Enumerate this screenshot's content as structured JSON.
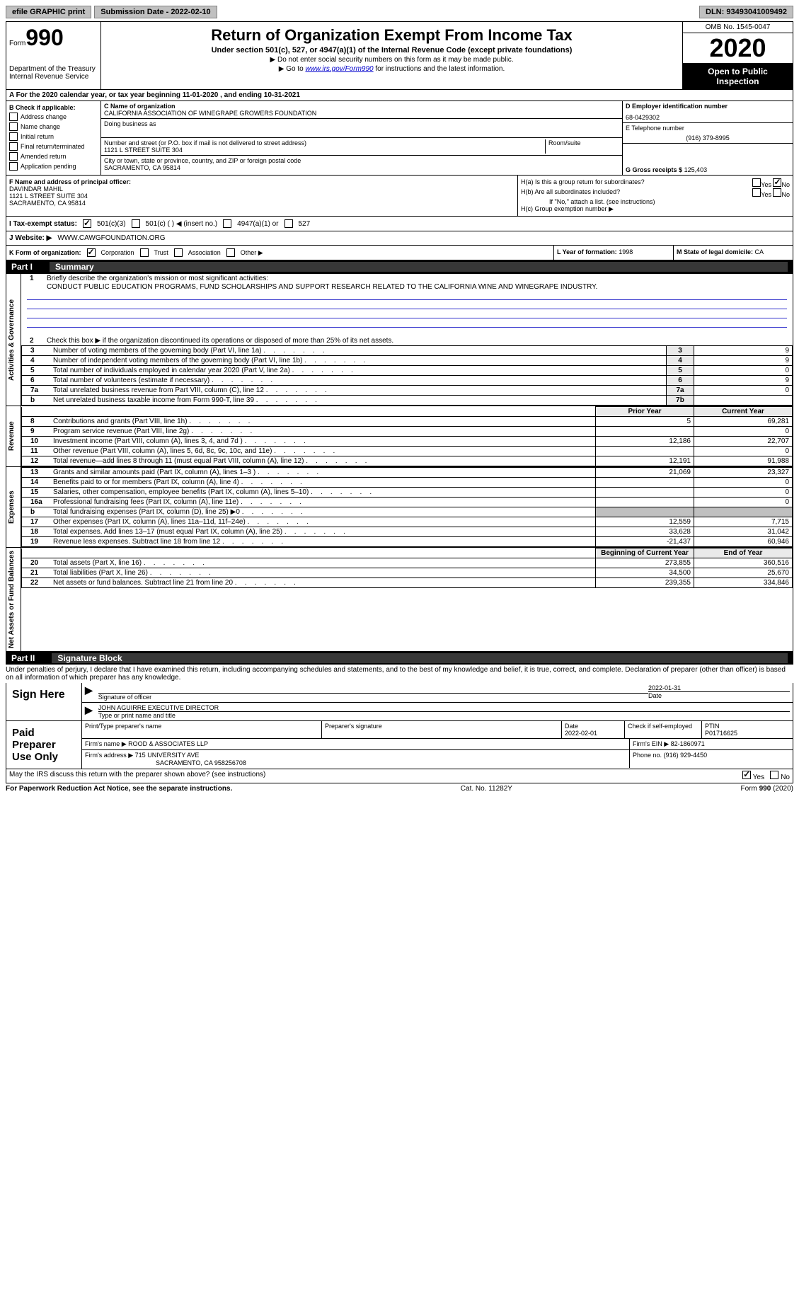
{
  "top": {
    "efile": "efile GRAPHIC print",
    "submission": "Submission Date - 2022-02-10",
    "dln": "DLN: 93493041009492"
  },
  "header": {
    "form_label": "Form",
    "form_num": "990",
    "title": "Return of Organization Exempt From Income Tax",
    "subtitle": "Under section 501(c), 527, or 4947(a)(1) of the Internal Revenue Code (except private foundations)",
    "instr1": "▶ Do not enter social security numbers on this form as it may be made public.",
    "instr2_pre": "▶ Go to ",
    "instr2_link": "www.irs.gov/Form990",
    "instr2_post": " for instructions and the latest information.",
    "dept": "Department of the Treasury",
    "irs": "Internal Revenue Service",
    "omb": "OMB No. 1545-0047",
    "year": "2020",
    "open": "Open to Public Inspection"
  },
  "period": "A For the 2020 calendar year, or tax year beginning 11-01-2020    , and ending 10-31-2021",
  "section_b": {
    "label": "B Check if applicable:",
    "items": [
      "Address change",
      "Name change",
      "Initial return",
      "Final return/terminated",
      "Amended return",
      "Application pending"
    ]
  },
  "section_c": {
    "name_label": "C Name of organization",
    "name": "CALIFORNIA ASSOCIATION OF WINEGRAPE GROWERS FOUNDATION",
    "dba_label": "Doing business as",
    "addr_label": "Number and street (or P.O. box if mail is not delivered to street address)",
    "room_label": "Room/suite",
    "addr": "1121 L STREET SUITE 304",
    "city_label": "City or town, state or province, country, and ZIP or foreign postal code",
    "city": "SACRAMENTO, CA  95814"
  },
  "section_d": {
    "ein_label": "D Employer identification number",
    "ein": "68-0429302",
    "tel_label": "E Telephone number",
    "tel": "(916) 379-8995",
    "gross_label": "G Gross receipts $",
    "gross": "125,403"
  },
  "section_f": {
    "label": "F Name and address of principal officer:",
    "name": "DAVINDAR MAHIL",
    "addr1": "1121 L STREET SUITE 304",
    "addr2": "SACRAMENTO, CA  95814"
  },
  "section_h": {
    "ha": "H(a)  Is this a group return for subordinates?",
    "hb": "H(b)  Are all subordinates included?",
    "hb_note": "If \"No,\" attach a list. (see instructions)",
    "hc": "H(c)  Group exemption number ▶",
    "yes": "Yes",
    "no": "No"
  },
  "tax_status": {
    "label": "I  Tax-exempt status:",
    "opts": [
      "501(c)(3)",
      "501(c) (  ) ◀ (insert no.)",
      "4947(a)(1) or",
      "527"
    ]
  },
  "website": {
    "label": "J  Website: ▶",
    "value": "WWW.CAWGFOUNDATION.ORG"
  },
  "form_org": {
    "label": "K Form of organization:",
    "opts": [
      "Corporation",
      "Trust",
      "Association",
      "Other ▶"
    ]
  },
  "lm": {
    "l_label": "L Year of formation:",
    "l_val": "1998",
    "m_label": "M State of legal domicile:",
    "m_val": "CA"
  },
  "part1": {
    "label": "Part I",
    "title": "Summary",
    "side1": "Activities & Governance",
    "side2": "Revenue",
    "side3": "Expenses",
    "side4": "Net Assets or Fund Balances",
    "q1": "Briefly describe the organization's mission or most significant activities:",
    "mission": "CONDUCT PUBLIC EDUCATION PROGRAMS, FUND SCHOLARSHIPS AND SUPPORT RESEARCH RELATED TO THE CALIFORNIA WINE AND WINEGRAPE INDUSTRY.",
    "q2": "Check this box ▶       if the organization discontinued its operations or disposed of more than 25% of its net assets.",
    "prior_year": "Prior Year",
    "current_year": "Current Year",
    "beg_year": "Beginning of Current Year",
    "end_year": "End of Year",
    "rows_gov": [
      {
        "n": "3",
        "t": "Number of voting members of the governing body (Part VI, line 1a)",
        "b": "3",
        "v": "9"
      },
      {
        "n": "4",
        "t": "Number of independent voting members of the governing body (Part VI, line 1b)",
        "b": "4",
        "v": "9"
      },
      {
        "n": "5",
        "t": "Total number of individuals employed in calendar year 2020 (Part V, line 2a)",
        "b": "5",
        "v": "0"
      },
      {
        "n": "6",
        "t": "Total number of volunteers (estimate if necessary)",
        "b": "6",
        "v": "9"
      },
      {
        "n": "7a",
        "t": "Total unrelated business revenue from Part VIII, column (C), line 12",
        "b": "7a",
        "v": "0"
      },
      {
        "n": "b",
        "t": "Net unrelated business taxable income from Form 990-T, line 39",
        "b": "7b",
        "v": ""
      }
    ],
    "rows_rev": [
      {
        "n": "8",
        "t": "Contributions and grants (Part VIII, line 1h)",
        "p": "5",
        "c": "69,281"
      },
      {
        "n": "9",
        "t": "Program service revenue (Part VIII, line 2g)",
        "p": "",
        "c": "0"
      },
      {
        "n": "10",
        "t": "Investment income (Part VIII, column (A), lines 3, 4, and 7d )",
        "p": "12,186",
        "c": "22,707"
      },
      {
        "n": "11",
        "t": "Other revenue (Part VIII, column (A), lines 5, 6d, 8c, 9c, 10c, and 11e)",
        "p": "",
        "c": "0"
      },
      {
        "n": "12",
        "t": "Total revenue—add lines 8 through 11 (must equal Part VIII, column (A), line 12)",
        "p": "12,191",
        "c": "91,988"
      }
    ],
    "rows_exp": [
      {
        "n": "13",
        "t": "Grants and similar amounts paid (Part IX, column (A), lines 1–3 )",
        "p": "21,069",
        "c": "23,327"
      },
      {
        "n": "14",
        "t": "Benefits paid to or for members (Part IX, column (A), line 4)",
        "p": "",
        "c": "0"
      },
      {
        "n": "15",
        "t": "Salaries, other compensation, employee benefits (Part IX, column (A), lines 5–10)",
        "p": "",
        "c": "0"
      },
      {
        "n": "16a",
        "t": "Professional fundraising fees (Part IX, column (A), line 11e)",
        "p": "",
        "c": "0"
      },
      {
        "n": "b",
        "t": "Total fundraising expenses (Part IX, column (D), line 25) ▶0",
        "p": "GRAY",
        "c": "GRAY"
      },
      {
        "n": "17",
        "t": "Other expenses (Part IX, column (A), lines 11a–11d, 11f–24e)",
        "p": "12,559",
        "c": "7,715"
      },
      {
        "n": "18",
        "t": "Total expenses. Add lines 13–17 (must equal Part IX, column (A), line 25)",
        "p": "33,628",
        "c": "31,042"
      },
      {
        "n": "19",
        "t": "Revenue less expenses. Subtract line 18 from line 12",
        "p": "-21,437",
        "c": "60,946"
      }
    ],
    "rows_net": [
      {
        "n": "20",
        "t": "Total assets (Part X, line 16)",
        "p": "273,855",
        "c": "360,516"
      },
      {
        "n": "21",
        "t": "Total liabilities (Part X, line 26)",
        "p": "34,500",
        "c": "25,670"
      },
      {
        "n": "22",
        "t": "Net assets or fund balances. Subtract line 21 from line 20",
        "p": "239,355",
        "c": "334,846"
      }
    ]
  },
  "part2": {
    "label": "Part II",
    "title": "Signature Block",
    "declaration": "Under penalties of perjury, I declare that I have examined this return, including accompanying schedules and statements, and to the best of my knowledge and belief, it is true, correct, and complete. Declaration of preparer (other than officer) is based on all information of which preparer has any knowledge.",
    "sign_here": "Sign Here",
    "sig_officer": "Signature of officer",
    "sig_date": "Date",
    "sig_date_val": "2022-01-31",
    "officer_name": "JOHN AGUIRRE  EXECUTIVE DIRECTOR",
    "type_name": "Type or print name and title",
    "paid_prep": "Paid Preparer Use Only",
    "prep_name_label": "Print/Type preparer's name",
    "prep_sig_label": "Preparer's signature",
    "prep_date_label": "Date",
    "prep_date": "2022-02-01",
    "check_self": "Check        if self-employed",
    "ptin_label": "PTIN",
    "ptin": "P01716625",
    "firm_name_label": "Firm's name    ▶",
    "firm_name": "ROOD & ASSOCIATES LLP",
    "firm_ein_label": "Firm's EIN ▶",
    "firm_ein": "82-1860971",
    "firm_addr_label": "Firm's address ▶",
    "firm_addr": "715 UNIVERSITY AVE",
    "firm_city": "SACRAMENTO, CA  958256708",
    "phone_label": "Phone no.",
    "phone": "(916) 929-4450",
    "may_irs": "May the IRS discuss this return with the preparer shown above? (see instructions)"
  },
  "footer": {
    "left": "For Paperwork Reduction Act Notice, see the separate instructions.",
    "center": "Cat. No. 11282Y",
    "right": "Form 990 (2020)"
  }
}
